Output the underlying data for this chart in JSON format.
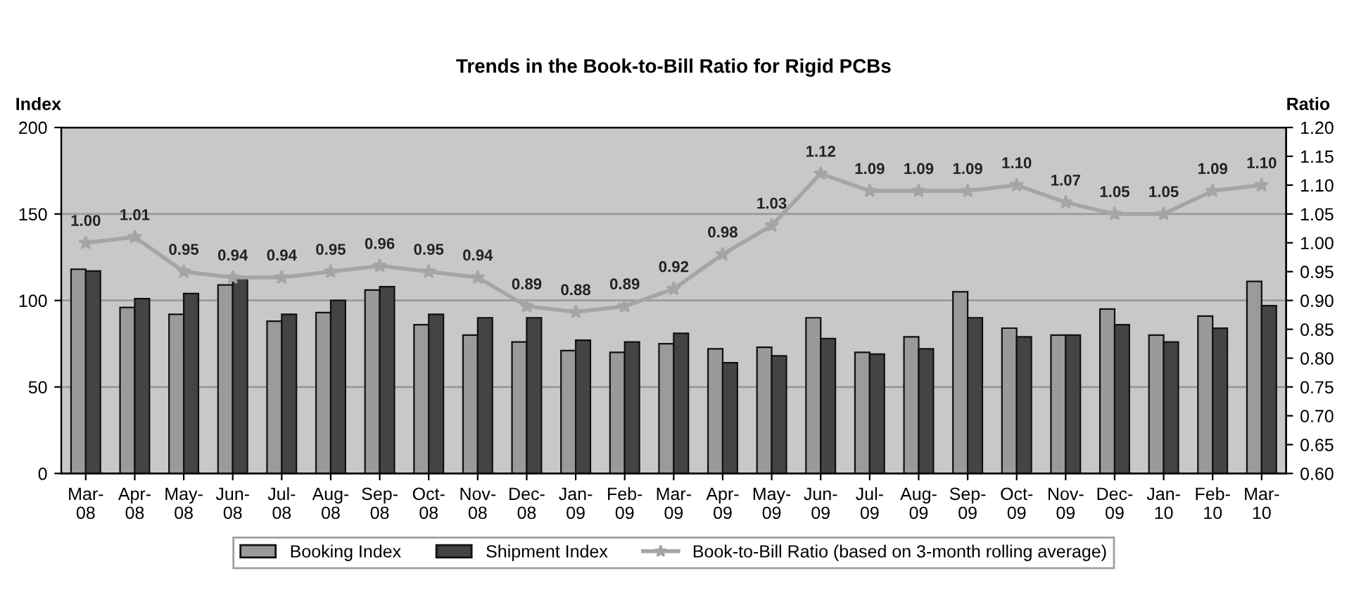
{
  "chart_data": {
    "type": "bar",
    "title": "Trends in the Book-to-Bill Ratio for Rigid PCBs",
    "ylabel": "Index",
    "y2label": "Ratio",
    "categories": [
      "Mar-\n08",
      "Apr-\n08",
      "May-\n08",
      "Jun-\n08",
      "Jul-\n08",
      "Aug-\n08",
      "Sep-\n08",
      "Oct-\n08",
      "Nov-\n08",
      "Dec-\n08",
      "Jan-\n09",
      "Feb-\n09",
      "Mar-\n09",
      "Apr-\n09",
      "May-\n09",
      "Jun-\n09",
      "Jul-\n09",
      "Aug-\n09",
      "Sep-\n09",
      "Oct-\n09",
      "Nov-\n09",
      "Dec-\n09",
      "Jan-\n10",
      "Feb-\n10",
      "Mar-\n10"
    ],
    "series": [
      {
        "name": "Booking Index",
        "color": "#9a9a9a",
        "values": [
          118,
          96,
          92,
          109,
          88,
          93,
          106,
          86,
          80,
          76,
          71,
          70,
          75,
          72,
          73,
          90,
          70,
          79,
          105,
          84,
          80,
          95,
          80,
          91,
          111
        ]
      },
      {
        "name": "Shipment Index",
        "color": "#444444",
        "values": [
          117,
          101,
          104,
          113,
          92,
          100,
          108,
          92,
          90,
          90,
          77,
          76,
          81,
          64,
          68,
          78,
          69,
          72,
          90,
          79,
          80,
          86,
          76,
          84,
          97
        ]
      },
      {
        "name": "Book-to-Bill Ratio (based on 3-month rolling average)",
        "type": "line",
        "axis": "y2",
        "color": "#a5a5a5",
        "marker": "star",
        "values": [
          1.0,
          1.01,
          0.95,
          0.94,
          0.94,
          0.95,
          0.96,
          0.95,
          0.94,
          0.89,
          0.88,
          0.89,
          0.92,
          0.98,
          1.03,
          1.12,
          1.09,
          1.09,
          1.09,
          1.1,
          1.07,
          1.05,
          1.05,
          1.09,
          1.1
        ],
        "value_labels": [
          "1.00",
          "1.01",
          "0.95",
          "0.94",
          "0.94",
          "0.95",
          "0.96",
          "0.95",
          "0.94",
          "0.89",
          "0.88",
          "0.89",
          "0.92",
          "0.98",
          "1.03",
          "1.12",
          "1.09",
          "1.09",
          "1.09",
          "1.10",
          "1.07",
          "1.05",
          "1.05",
          "1.09",
          "1.10"
        ]
      }
    ],
    "ylim": [
      0,
      200
    ],
    "yticks": [
      0,
      50,
      100,
      150,
      200
    ],
    "y2lim": [
      0.6,
      1.2
    ],
    "y2ticks": [
      {
        "value": 0.6,
        "label": "0.60"
      },
      {
        "value": 0.65,
        "label": "0.65"
      },
      {
        "value": 0.7,
        "label": "0.70"
      },
      {
        "value": 0.75,
        "label": "0.75"
      },
      {
        "value": 0.8,
        "label": "0.80"
      },
      {
        "value": 0.85,
        "label": "0.85"
      },
      {
        "value": 0.9,
        "label": "0.90"
      },
      {
        "value": 0.95,
        "label": "0.95"
      },
      {
        "value": 1.0,
        "label": "1.00"
      },
      {
        "value": 1.05,
        "label": "1.05"
      },
      {
        "value": 1.1,
        "label": "1.10"
      },
      {
        "value": 1.15,
        "label": "1.15"
      },
      {
        "value": 1.2,
        "label": "1.20"
      }
    ],
    "grid": "y",
    "legend": "bottom"
  }
}
